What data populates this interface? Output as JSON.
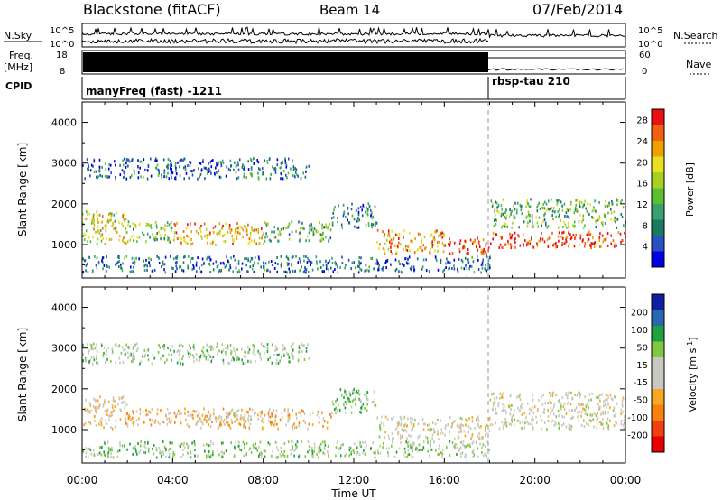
{
  "header": {
    "station": "Blackstone (fitACF)",
    "beam": "Beam 14",
    "date": "07/Feb/2014"
  },
  "noise_panel": {
    "left_label": "N.Sky",
    "right_label": "N.Search",
    "left_ticks": [
      "10^5",
      "10^0"
    ],
    "right_ticks": [
      "10^5",
      "10^0"
    ]
  },
  "freq_panel": {
    "left_label_line1": "Freq.",
    "left_label_line2": "[MHz]",
    "left_ticks": [
      "18",
      "8"
    ],
    "right_label": "Nave",
    "right_ticks": [
      "60",
      "0"
    ]
  },
  "cpid_panel": {
    "label": "CPID",
    "segments": [
      {
        "name": "manyFreq (fast) -1211",
        "start_hour": 0,
        "end_hour": 18
      },
      {
        "name": "rbsp-tau 210",
        "start_hour": 18,
        "end_hour": 24
      }
    ]
  },
  "x_axis": {
    "title": "Time UT",
    "ticks": [
      "00:00",
      "04:00",
      "08:00",
      "12:00",
      "16:00",
      "20:00",
      "00:00"
    ]
  },
  "chart_data": [
    {
      "type": "heatmap",
      "title": "",
      "xlabel": "Time UT",
      "ylabel": "Slant Range [km]",
      "xlim": [
        0,
        24
      ],
      "ylim": [
        180,
        4500
      ],
      "y_ticks": [
        "1000",
        "2000",
        "3000",
        "4000"
      ],
      "colorbar": {
        "label": "Power [dB]",
        "ticks": [
          "4",
          "8",
          "12",
          "16",
          "20",
          "24",
          "28"
        ],
        "range": [
          0,
          30
        ],
        "colors": [
          "#0000e0",
          "#2850c0",
          "#1a7a60",
          "#3aa070",
          "#5ac030",
          "#a8d020",
          "#e8e020",
          "#f0a000",
          "#f06010",
          "#e81010"
        ]
      },
      "regions": [
        {
          "t0": 0.0,
          "t1": 2.0,
          "r0": 1000,
          "r1": 1800,
          "value": 18
        },
        {
          "t0": 2.0,
          "t1": 4.0,
          "r0": 1050,
          "r1": 1550,
          "value": 14
        },
        {
          "t0": 4.0,
          "t1": 8.0,
          "r0": 980,
          "r1": 1520,
          "value": 22
        },
        {
          "t0": 8.0,
          "t1": 11.0,
          "r0": 1050,
          "r1": 1550,
          "value": 12
        },
        {
          "t0": 11.0,
          "t1": 13.0,
          "r0": 1400,
          "r1": 2000,
          "value": 8
        },
        {
          "t0": 13.0,
          "t1": 16.0,
          "r0": 750,
          "r1": 1350,
          "value": 22
        },
        {
          "t0": 16.0,
          "t1": 18.0,
          "r0": 750,
          "r1": 1150,
          "value": 28
        },
        {
          "t0": 18.0,
          "t1": 24.0,
          "r0": 900,
          "r1": 1300,
          "value": 28
        },
        {
          "t0": 18.0,
          "t1": 24.0,
          "r0": 1400,
          "r1": 2100,
          "value": 12
        },
        {
          "t0": 0.0,
          "t1": 10.0,
          "r0": 2600,
          "r1": 3100,
          "value": 6
        },
        {
          "t0": 0.0,
          "t1": 18.0,
          "r0": 300,
          "r1": 700,
          "value": 6
        }
      ]
    },
    {
      "type": "heatmap",
      "title": "",
      "xlabel": "Time UT",
      "ylabel": "Slant Range [km]",
      "xlim": [
        0,
        24
      ],
      "ylim": [
        180,
        4500
      ],
      "y_ticks": [
        "1000",
        "2000",
        "3000",
        "4000"
      ],
      "colorbar": {
        "label": "Velocity [m s^-1]",
        "ticks": [
          "200",
          "100",
          "50",
          "15",
          "-15",
          "-50",
          "-100",
          "-200"
        ],
        "range": [
          -250,
          250
        ],
        "colors": [
          "#e80000",
          "#f04010",
          "#f88010",
          "#f8a820",
          "#c8c8c0",
          "#c8c8c0",
          "#80c840",
          "#20a040",
          "#2868b0",
          "#1020a0"
        ]
      },
      "regions": [
        {
          "t0": 0.0,
          "t1": 2.0,
          "r0": 1000,
          "r1": 1800,
          "value": -40
        },
        {
          "t0": 2.0,
          "t1": 4.5,
          "r0": 1100,
          "r1": 1500,
          "value": -60
        },
        {
          "t0": 4.5,
          "t1": 11.0,
          "r0": 1000,
          "r1": 1500,
          "value": -60
        },
        {
          "t0": 5.0,
          "t1": 8.0,
          "r0": 1200,
          "r1": 1350,
          "value": 0
        },
        {
          "t0": 11.0,
          "t1": 13.0,
          "r0": 1400,
          "r1": 2000,
          "value": 80
        },
        {
          "t0": 13.0,
          "t1": 18.0,
          "r0": 750,
          "r1": 1300,
          "value": 0
        },
        {
          "t0": 18.0,
          "t1": 24.0,
          "r0": 1000,
          "r1": 1900,
          "value": 0
        },
        {
          "t0": 0.0,
          "t1": 10.0,
          "r0": 2600,
          "r1": 3100,
          "value": 60
        },
        {
          "t0": 0.0,
          "t1": 18.0,
          "r0": 300,
          "r1": 700,
          "value": 60
        }
      ]
    }
  ]
}
